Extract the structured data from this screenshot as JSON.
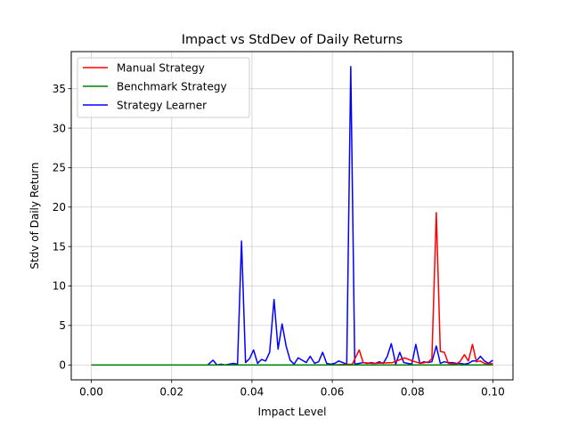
{
  "chart_data": {
    "type": "line",
    "title": "Impact vs StdDev of Daily Returns",
    "xlabel": "Impact Level",
    "ylabel": "Stdv of Daily Return",
    "xlim": [
      -0.005,
      0.105
    ],
    "ylim": [
      -1.89,
      39.7
    ],
    "grid": true,
    "legend_position": "top-left",
    "x_ticks": [
      0.0,
      0.02,
      0.04,
      0.06,
      0.08,
      0.1
    ],
    "x_tick_labels": [
      "0.00",
      "0.02",
      "0.04",
      "0.06",
      "0.08",
      "0.10"
    ],
    "y_ticks": [
      0,
      5,
      10,
      15,
      20,
      25,
      30,
      35
    ],
    "y_tick_labels": [
      "0",
      "5",
      "10",
      "15",
      "20",
      "25",
      "30",
      "35"
    ],
    "series": [
      {
        "name": "Manual Strategy",
        "color": "#ff0000",
        "x": [
          0.0,
          0.03,
          0.035,
          0.04,
          0.05,
          0.06,
          0.065,
          0.0667,
          0.0677,
          0.07,
          0.075,
          0.078,
          0.08,
          0.082,
          0.084,
          0.0848,
          0.0859,
          0.0869,
          0.0879,
          0.0889,
          0.0909,
          0.0919,
          0.0929,
          0.0939,
          0.0949,
          0.0959,
          0.0969,
          0.0979,
          0.0989,
          0.1
        ],
        "y": [
          0,
          0,
          0,
          0,
          0,
          0,
          0.1,
          1.9,
          0.3,
          0.2,
          0.3,
          0.9,
          0.5,
          0.2,
          0.4,
          0.8,
          19.3,
          1.7,
          1.6,
          0.2,
          0.1,
          0.5,
          1.3,
          0.5,
          2.6,
          0.4,
          0.5,
          0.2,
          0.1,
          0.2
        ]
      },
      {
        "name": "Benchmark Strategy",
        "color": "#008000",
        "x": [
          0.0,
          0.1
        ],
        "y": [
          0,
          0
        ]
      },
      {
        "name": "Strategy Learner",
        "color": "#0000ff",
        "x": [
          0.0,
          0.029,
          0.0303,
          0.0313,
          0.0323,
          0.0333,
          0.0343,
          0.0354,
          0.0364,
          0.0374,
          0.0384,
          0.0394,
          0.0404,
          0.0414,
          0.0424,
          0.0434,
          0.0444,
          0.0455,
          0.0465,
          0.0475,
          0.0485,
          0.0495,
          0.0505,
          0.0515,
          0.0525,
          0.0535,
          0.0545,
          0.0556,
          0.0566,
          0.0576,
          0.0586,
          0.0596,
          0.0606,
          0.0616,
          0.0626,
          0.0636,
          0.0646,
          0.0656,
          0.0667,
          0.0677,
          0.0687,
          0.0697,
          0.0707,
          0.0717,
          0.0727,
          0.0737,
          0.0747,
          0.0758,
          0.0768,
          0.0778,
          0.0788,
          0.0798,
          0.0808,
          0.0818,
          0.0828,
          0.0838,
          0.0848,
          0.0859,
          0.0869,
          0.0879,
          0.0889,
          0.0899,
          0.0909,
          0.0919,
          0.0929,
          0.0939,
          0.0949,
          0.0959,
          0.0969,
          0.0979,
          0.0989,
          0.1
        ],
        "y": [
          0,
          0,
          0.6,
          0,
          0.1,
          0,
          0.1,
          0.2,
          0.1,
          15.7,
          0.3,
          0.8,
          1.9,
          0.2,
          0.7,
          0.5,
          1.6,
          8.3,
          2.0,
          5.2,
          2.4,
          0.6,
          0.1,
          0.9,
          0.6,
          0.3,
          1.1,
          0.2,
          0.4,
          1.6,
          0.2,
          0.1,
          0.2,
          0.5,
          0.3,
          0.1,
          37.8,
          0.1,
          0.2,
          0.3,
          0.2,
          0.3,
          0.2,
          0.4,
          0.2,
          1.1,
          2.7,
          0.1,
          1.6,
          0.3,
          0.2,
          0.1,
          2.6,
          0.2,
          0.4,
          0.3,
          0.4,
          2.4,
          0.2,
          0.4,
          0.3,
          0.3,
          0.2,
          0.2,
          0.1,
          0.2,
          0.5,
          0.5,
          1.1,
          0.5,
          0.2,
          0.6
        ]
      }
    ]
  }
}
